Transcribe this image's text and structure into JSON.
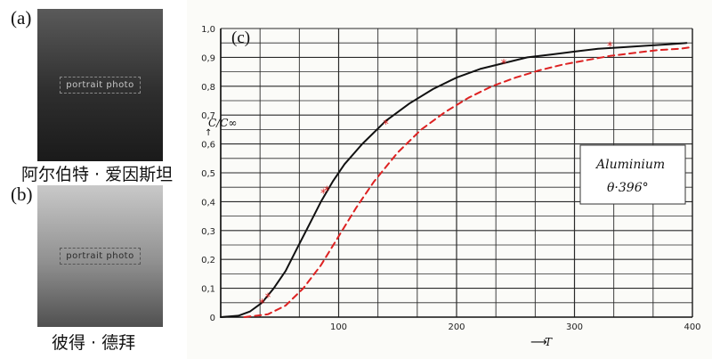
{
  "panels": {
    "a": {
      "letter": "(a)",
      "caption": "阿尔伯特 · 爱因斯坦"
    },
    "b": {
      "letter": "(b)",
      "caption": "彼得 · 德拜"
    },
    "c": {
      "letter": "(c)"
    }
  },
  "placeholders": {
    "portrait": "portrait photo"
  },
  "chart_data": {
    "type": "line",
    "xlabel": "T",
    "ylabel": "C/C∞",
    "xlim": [
      0,
      400
    ],
    "ylim": [
      0,
      1.0
    ],
    "x_ticks": [
      100,
      200,
      300,
      400
    ],
    "y_ticks": [
      "0",
      "0,1",
      "0,2",
      "0,3",
      "0,4",
      "0,5",
      "0,6",
      "0,7",
      "0,8",
      "0,9",
      "1,0"
    ],
    "grid": true,
    "annotation": {
      "line1": "Aluminium",
      "line2": "θ·396°"
    },
    "colors": {
      "solid": "#111111",
      "dashed": "#dd2222",
      "stars": "#dd2222"
    },
    "series": [
      {
        "style": "solid",
        "x": [
          0,
          15,
          25,
          35,
          45,
          55,
          65,
          75,
          85,
          95,
          105,
          120,
          140,
          160,
          180,
          200,
          220,
          240,
          260,
          280,
          300,
          320,
          340,
          360,
          380,
          395
        ],
        "y": [
          0,
          0.005,
          0.02,
          0.05,
          0.1,
          0.16,
          0.24,
          0.32,
          0.4,
          0.47,
          0.53,
          0.6,
          0.68,
          0.74,
          0.79,
          0.83,
          0.86,
          0.88,
          0.9,
          0.91,
          0.92,
          0.93,
          0.935,
          0.94,
          0.945,
          0.95
        ]
      },
      {
        "style": "dashed",
        "x": [
          20,
          40,
          55,
          70,
          85,
          100,
          115,
          130,
          150,
          170,
          190,
          210,
          230,
          250,
          270,
          290,
          310,
          330,
          350,
          370,
          390,
          398
        ],
        "y": [
          0,
          0.01,
          0.04,
          0.1,
          0.18,
          0.28,
          0.38,
          0.47,
          0.57,
          0.65,
          0.71,
          0.76,
          0.8,
          0.83,
          0.855,
          0.875,
          0.89,
          0.905,
          0.915,
          0.925,
          0.93,
          0.935
        ]
      },
      {
        "style": "stars",
        "x": [
          35,
          40,
          87,
          90,
          140,
          240,
          330
        ],
        "y": [
          0.05,
          0.07,
          0.43,
          0.44,
          0.67,
          0.88,
          0.94
        ]
      }
    ]
  }
}
